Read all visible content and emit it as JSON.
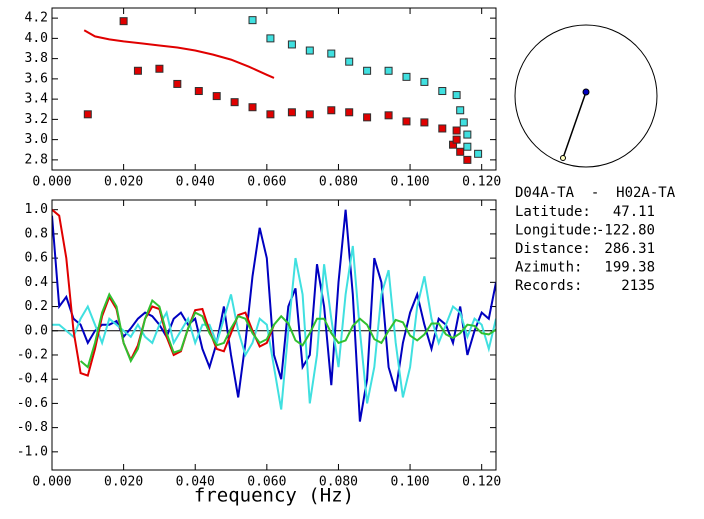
{
  "chart_data": [
    {
      "type": "scatter",
      "xlim": [
        0,
        0.124
      ],
      "ylim": [
        2.7,
        4.3
      ],
      "xticks": [
        {
          "value": 0,
          "label": "0.000"
        },
        {
          "value": 0.02,
          "label": "0.020"
        },
        {
          "value": 0.04,
          "label": "0.040"
        },
        {
          "value": 0.06,
          "label": "0.060"
        },
        {
          "value": 0.08,
          "label": "0.080"
        },
        {
          "value": 0.1,
          "label": "0.100"
        },
        {
          "value": 0.12,
          "label": "0.120"
        }
      ],
      "yticks": [
        2.8,
        {
          "value": 3,
          "label": "3.0"
        },
        3.2,
        3.4,
        3.6,
        3.8,
        {
          "value": 4,
          "label": "4.0"
        },
        4.2
      ],
      "series": [
        {
          "color": "#e00000",
          "style": "markers",
          "x": [
            0.01,
            0.02,
            0.024,
            0.03,
            0.035,
            0.041,
            0.046,
            0.051,
            0.056,
            0.061,
            0.067,
            0.072,
            0.078,
            0.083,
            0.088,
            0.094,
            0.099,
            0.104,
            0.109,
            0.113,
            0.112,
            0.113,
            0.114,
            0.116
          ],
          "values": [
            3.25,
            4.17,
            3.68,
            3.7,
            3.55,
            3.48,
            3.43,
            3.37,
            3.32,
            3.25,
            3.27,
            3.25,
            3.29,
            3.27,
            3.22,
            3.24,
            3.18,
            3.17,
            3.11,
            3.09,
            2.95,
            3.0,
            2.88,
            2.8
          ]
        },
        {
          "color": "#40e0e0",
          "style": "markers",
          "x": [
            0.056,
            0.061,
            0.067,
            0.072,
            0.078,
            0.083,
            0.088,
            0.094,
            0.099,
            0.104,
            0.109,
            0.113,
            0.114,
            0.115,
            0.116,
            0.116,
            0.119
          ],
          "values": [
            4.18,
            4.0,
            3.94,
            3.88,
            3.85,
            3.77,
            3.68,
            3.68,
            3.62,
            3.57,
            3.48,
            3.44,
            3.29,
            3.17,
            3.05,
            2.93,
            2.86
          ]
        },
        {
          "color": "#e00000",
          "style": "line",
          "x": [
            0.009,
            0.012,
            0.016,
            0.02,
            0.025,
            0.03,
            0.035,
            0.04,
            0.045,
            0.05,
            0.055,
            0.06,
            0.062
          ],
          "values": [
            4.08,
            4.02,
            3.99,
            3.97,
            3.95,
            3.93,
            3.91,
            3.88,
            3.84,
            3.79,
            3.72,
            3.64,
            3.61
          ]
        }
      ]
    },
    {
      "type": "line",
      "xlabel": "frequency (Hz)",
      "xlim": [
        0,
        0.124
      ],
      "ylim": [
        -1.15,
        1.08
      ],
      "xticks": [
        {
          "value": 0,
          "label": "0.000"
        },
        {
          "value": 0.02,
          "label": "0.020"
        },
        {
          "value": 0.04,
          "label": "0.040"
        },
        {
          "value": 0.06,
          "label": "0.060"
        },
        {
          "value": 0.08,
          "label": "0.080"
        },
        {
          "value": 0.1,
          "label": "0.100"
        },
        {
          "value": 0.12,
          "label": "0.120"
        }
      ],
      "yticks": [
        {
          "value": -1,
          "label": "-1.0"
        },
        -0.8,
        -0.6,
        -0.4,
        -0.2,
        {
          "value": 0,
          "label": "0.0"
        },
        0.2,
        0.4,
        0.6,
        0.8,
        {
          "value": 1,
          "label": "1.0"
        }
      ],
      "x": [
        0,
        0.002,
        0.004,
        0.006,
        0.008,
        0.01,
        0.012,
        0.014,
        0.016,
        0.018,
        0.02,
        0.022,
        0.024,
        0.026,
        0.028,
        0.03,
        0.032,
        0.034,
        0.036,
        0.038,
        0.04,
        0.042,
        0.044,
        0.046,
        0.048,
        0.05,
        0.052,
        0.054,
        0.056,
        0.058,
        0.06,
        0.062,
        0.064,
        0.066,
        0.068,
        0.07,
        0.072,
        0.074,
        0.076,
        0.078,
        0.08,
        0.082,
        0.084,
        0.086,
        0.088,
        0.09,
        0.092,
        0.094,
        0.096,
        0.098,
        0.1,
        0.102,
        0.104,
        0.106,
        0.108,
        0.11,
        0.112,
        0.114,
        0.116,
        0.118,
        0.12,
        0.122,
        0.124
      ],
      "series": [
        {
          "color": "#0000c0",
          "values": [
            0.95,
            0.2,
            0.28,
            0.1,
            0.05,
            -0.1,
            0.0,
            0.05,
            0.05,
            0.08,
            -0.05,
            0.02,
            0.1,
            0.15,
            0.12,
            0.05,
            -0.05,
            0.1,
            0.15,
            0.05,
            0.1,
            -0.15,
            -0.3,
            -0.1,
            0.2,
            -0.2,
            -0.55,
            -0.1,
            0.45,
            0.85,
            0.6,
            -0.2,
            -0.4,
            0.2,
            0.35,
            -0.3,
            -0.2,
            0.55,
            0.2,
            -0.45,
            0.4,
            1.0,
            0.3,
            -0.75,
            -0.4,
            0.6,
            0.4,
            -0.3,
            -0.5,
            -0.1,
            0.15,
            0.3,
            0.05,
            -0.15,
            0.1,
            0.05,
            -0.1,
            0.2,
            -0.2,
            0.0,
            0.15,
            0.1,
            0.4
          ]
        },
        {
          "color": "#40e0e0",
          "values": [
            0.05,
            0.05,
            0.0,
            -0.05,
            0.1,
            0.2,
            0.05,
            -0.1,
            0.1,
            0.05,
            0.0,
            -0.05,
            0.05,
            -0.05,
            -0.1,
            0.05,
            0.15,
            -0.1,
            0.0,
            0.1,
            -0.1,
            0.05,
            0.05,
            -0.1,
            0.1,
            0.3,
            0.0,
            -0.2,
            -0.1,
            0.1,
            0.05,
            -0.3,
            -0.65,
            0.0,
            0.6,
            0.3,
            -0.6,
            -0.2,
            0.55,
            0.1,
            -0.3,
            0.3,
            0.7,
            0.0,
            -0.6,
            -0.3,
            0.3,
            0.5,
            -0.1,
            -0.55,
            -0.3,
            0.2,
            0.45,
            0.1,
            -0.1,
            0.05,
            0.2,
            0.15,
            -0.05,
            0.1,
            0.05,
            -0.15,
            0.1
          ]
        },
        {
          "color": "#e00000",
          "values": [
            1.0,
            0.95,
            0.6,
            0.0,
            -0.35,
            -0.37,
            -0.15,
            0.12,
            0.28,
            0.18,
            -0.1,
            -0.24,
            -0.12,
            0.1,
            0.2,
            0.18,
            -0.05,
            -0.2,
            -0.17,
            0.02,
            0.17,
            0.18,
            0.0,
            -0.15,
            -0.17,
            -0.02,
            0.13,
            0.15,
            0.0,
            -0.13,
            -0.1,
            0.05,
            null,
            null,
            null,
            null,
            null,
            null,
            null,
            null,
            null,
            null,
            null,
            null,
            null,
            null,
            null,
            null,
            null,
            null,
            null,
            null,
            null,
            null,
            null,
            null,
            null,
            null,
            null,
            null,
            null,
            null,
            null
          ]
        },
        {
          "color": "#30c030",
          "values": [
            null,
            null,
            null,
            null,
            -0.25,
            -0.3,
            -0.1,
            0.15,
            0.3,
            0.2,
            -0.1,
            -0.25,
            -0.15,
            0.1,
            0.25,
            0.2,
            -0.02,
            -0.18,
            -0.16,
            0.02,
            0.15,
            0.12,
            -0.02,
            -0.12,
            -0.1,
            0.02,
            0.12,
            0.1,
            -0.02,
            -0.1,
            -0.07,
            0.05,
            0.12,
            0.06,
            -0.08,
            -0.12,
            -0.02,
            0.1,
            0.1,
            -0.02,
            -0.1,
            -0.08,
            0.04,
            0.1,
            0.05,
            -0.07,
            -0.1,
            0.0,
            0.09,
            0.07,
            -0.04,
            -0.08,
            -0.03,
            0.06,
            0.06,
            -0.03,
            -0.06,
            -0.02,
            0.05,
            0.04,
            -0.02,
            -0.03,
            0.01
          ]
        }
      ]
    }
  ],
  "station_info": {
    "title": "D04A-TA  -  H02A-TA",
    "fields": [
      {
        "label": "Latitude:",
        "value": "47.11"
      },
      {
        "label": "Longitude:",
        "value": "-122.80"
      },
      {
        "label": "Distance:",
        "value": "286.31"
      },
      {
        "label": "Azimuth:",
        "value": "199.38"
      },
      {
        "label": "Records:",
        "value": "2135"
      }
    ]
  }
}
